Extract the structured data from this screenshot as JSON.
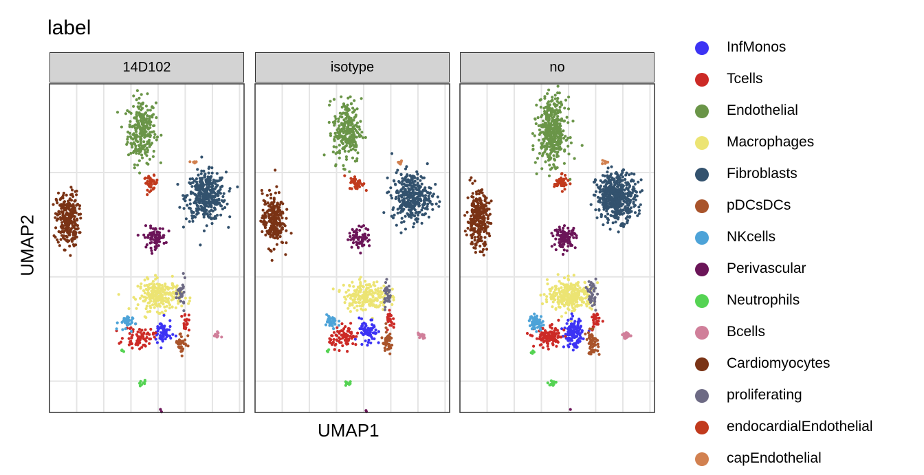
{
  "chart_data": {
    "type": "scatter",
    "title": "label",
    "xlabel": "UMAP1",
    "ylabel": "UMAP2",
    "grid": true,
    "legend_position": "right",
    "facets": [
      "14D102",
      "isotype",
      "no"
    ],
    "tick_labels_shown": false,
    "xlim": [
      -9,
      12.5
    ],
    "ylim": [
      -18,
      13.5
    ],
    "categories": [
      {
        "name": "InfMonos",
        "color": "#3c33f4"
      },
      {
        "name": "Tcells",
        "color": "#cc2a26"
      },
      {
        "name": "Endothelial",
        "color": "#6a9548"
      },
      {
        "name": "Macrophages",
        "color": "#ece473"
      },
      {
        "name": "Fibroblasts",
        "color": "#33526e"
      },
      {
        "name": "pDCsDCs",
        "color": "#a9542b"
      },
      {
        "name": "NKcells",
        "color": "#4da3d8"
      },
      {
        "name": "Perivascular",
        "color": "#6b1558"
      },
      {
        "name": "Neutrophils",
        "color": "#55d353"
      },
      {
        "name": "Bcells",
        "color": "#d07f9a"
      },
      {
        "name": "Cardiomyocytes",
        "color": "#7a3315"
      },
      {
        "name": "proliferating",
        "color": "#6d6a84"
      },
      {
        "name": "endocardialEndothelial",
        "color": "#c13a1d"
      },
      {
        "name": "capEndothelial",
        "color": "#d28150"
      }
    ],
    "clusters": [
      {
        "label": "Endothelial",
        "cx": 1.2,
        "cy": 9,
        "sx": 1.4,
        "sy": 2.8,
        "n": [
          260,
          240,
          420
        ]
      },
      {
        "label": "endocardialEndothelial",
        "cx": 2.2,
        "cy": 4.0,
        "sx": 0.7,
        "sy": 0.6,
        "n": [
          40,
          40,
          45
        ]
      },
      {
        "label": "Fibroblasts",
        "cx": 8.3,
        "cy": 2.7,
        "sx": 2.0,
        "sy": 2.1,
        "n": [
          380,
          330,
          480
        ]
      },
      {
        "label": "capEndothelial",
        "cx": 7.0,
        "cy": 6.0,
        "sx": 0.3,
        "sy": 0.25,
        "n": [
          6,
          6,
          8
        ]
      },
      {
        "label": "Cardiomyocytes",
        "cx": -7.0,
        "cy": 0.5,
        "sx": 1.1,
        "sy": 2.4,
        "n": [
          260,
          230,
          290
        ]
      },
      {
        "label": "Perivascular",
        "cx": 2.6,
        "cy": -1.2,
        "sx": 1.1,
        "sy": 0.9,
        "n": [
          80,
          70,
          110
        ]
      },
      {
        "label": "Macrophages",
        "cx": 3.2,
        "cy": -6.8,
        "sx": 2.2,
        "sy": 1.3,
        "n": [
          240,
          200,
          280
        ]
      },
      {
        "label": "proliferating",
        "cx": 5.6,
        "cy": -6.6,
        "sx": 0.4,
        "sy": 1.2,
        "n": [
          30,
          30,
          40
        ]
      },
      {
        "label": "InfMonos",
        "cx": 3.5,
        "cy": -10.4,
        "sx": 0.9,
        "sy": 1.2,
        "n": [
          60,
          60,
          150
        ]
      },
      {
        "label": "Tcells",
        "cx": 0.9,
        "cy": -10.8,
        "sx": 1.5,
        "sy": 0.9,
        "n": [
          70,
          85,
          110
        ]
      },
      {
        "label": "Tcells",
        "cx": 6.0,
        "cy": -9.3,
        "sx": 0.4,
        "sy": 0.8,
        "n": [
          18,
          22,
          30
        ]
      },
      {
        "label": "pDCsDCs",
        "cx": 5.6,
        "cy": -11.3,
        "sx": 0.6,
        "sy": 1.0,
        "n": [
          35,
          40,
          55
        ]
      },
      {
        "label": "NKcells",
        "cx": -0.6,
        "cy": -9.4,
        "sx": 0.7,
        "sy": 0.7,
        "n": [
          30,
          35,
          55
        ]
      },
      {
        "label": "Bcells",
        "cx": 9.4,
        "cy": -10.6,
        "sx": 0.4,
        "sy": 0.3,
        "n": [
          12,
          16,
          22
        ]
      },
      {
        "label": "Neutrophils",
        "cx": 1.3,
        "cy": -15.2,
        "sx": 0.35,
        "sy": 0.25,
        "n": [
          8,
          10,
          16
        ]
      },
      {
        "label": "Perivascular",
        "cx": 3.2,
        "cy": -18.2,
        "sx": 0.2,
        "sy": 0.5,
        "n": [
          6,
          6,
          10
        ]
      },
      {
        "label": "Neutrophils",
        "cx": -1.0,
        "cy": -12.2,
        "sx": 0.2,
        "sy": 0.2,
        "n": [
          3,
          3,
          5
        ]
      }
    ]
  }
}
